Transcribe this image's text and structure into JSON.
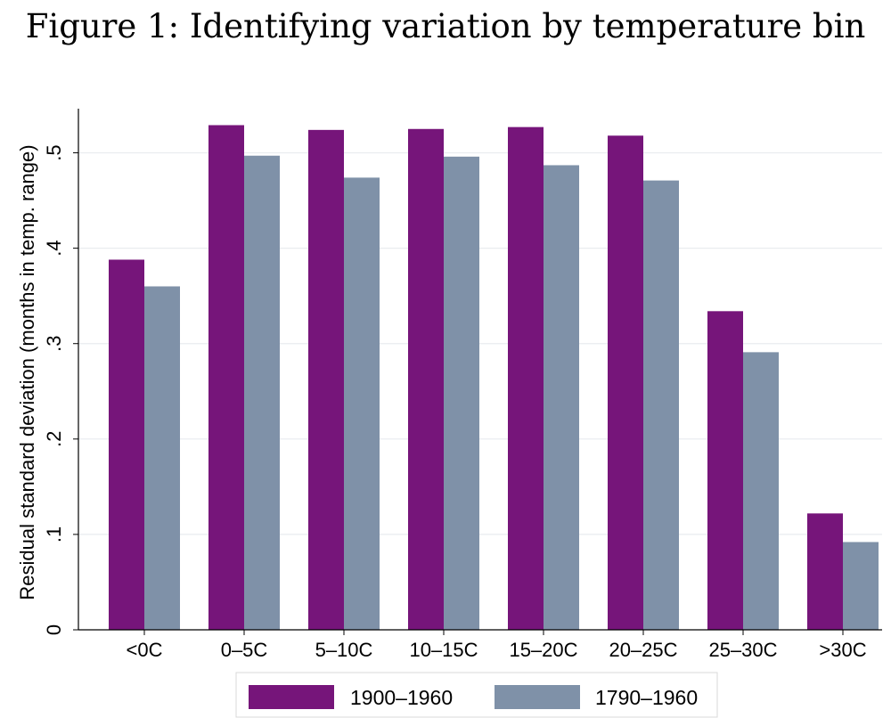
{
  "title": "Figure 1: Identifying variation by temperature bin",
  "chart_data": {
    "type": "bar",
    "categories": [
      "<0C",
      "0–5C",
      "5–10C",
      "10–15C",
      "15–20C",
      "20–25C",
      "25–30C",
      ">30C"
    ],
    "series": [
      {
        "name": "1900–1960",
        "color": "#76157a",
        "values": [
          0.388,
          0.529,
          0.524,
          0.525,
          0.527,
          0.518,
          0.334,
          0.122
        ]
      },
      {
        "name": "1790–1960",
        "color": "#7f91a8",
        "values": [
          0.36,
          0.497,
          0.474,
          0.496,
          0.487,
          0.471,
          0.291,
          0.092
        ]
      }
    ],
    "xlabel": "",
    "ylabel": "Residual standard deviation (months in temp. range)",
    "yticks": [
      0,
      0.1,
      0.2,
      0.3,
      0.4,
      0.5
    ],
    "ytick_labels": [
      "0",
      ".1",
      ".2",
      ".3",
      ".4",
      ".5"
    ],
    "ylim": [
      0,
      0.55
    ],
    "grid": true,
    "legend_position": "bottom"
  }
}
